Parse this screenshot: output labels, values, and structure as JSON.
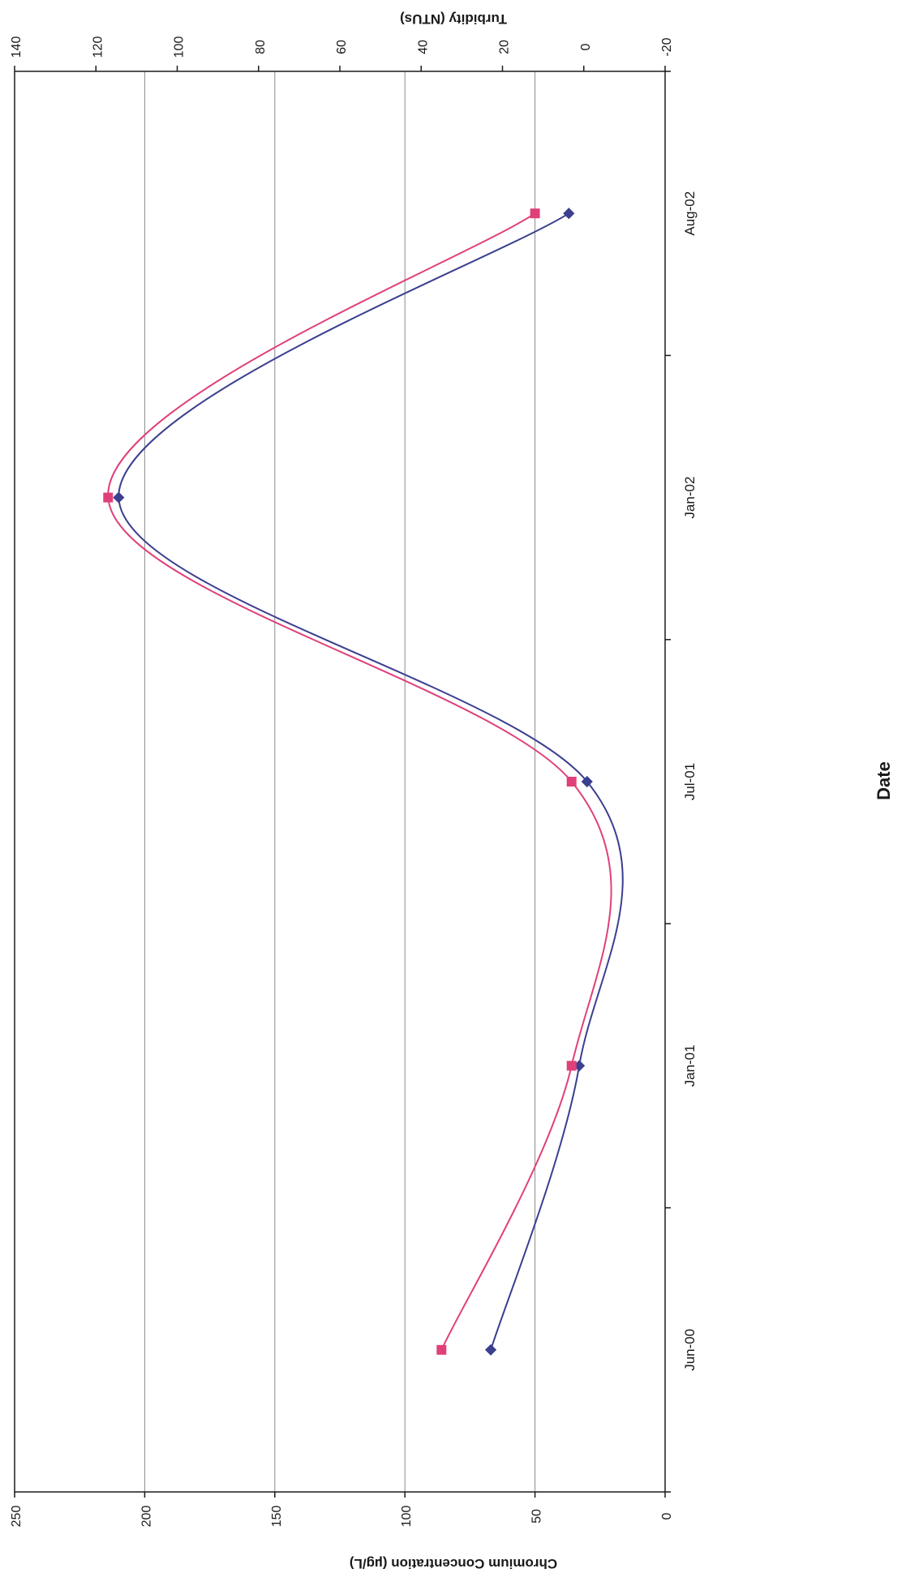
{
  "chart_data": {
    "type": "line",
    "orientation": "rotated-90-clockwise",
    "title": "",
    "xlabel": "Date",
    "ylabel": "Chromium Concentration (µg/L)",
    "y2label": "Turbidity (NTUs)",
    "x_tick_labels": [
      "Jun-00",
      "Jan-01",
      "Jul-01",
      "Jan-02",
      "Aug-02"
    ],
    "x_dates": [
      "Jun-00",
      "Jan-01",
      "Jul-01",
      "Jan-02",
      "Aug-02"
    ],
    "ylim": [
      0,
      250
    ],
    "y_ticks": [
      0,
      50,
      100,
      150,
      200,
      250
    ],
    "y2lim": [
      -20,
      140
    ],
    "y2_ticks": [
      -20,
      0,
      20,
      40,
      60,
      80,
      100,
      120,
      140
    ],
    "grid": true,
    "smoothed": true,
    "series": [
      {
        "axis": "primary",
        "color": "#3b3f8f",
        "marker": "diamond",
        "values": [
          67,
          33,
          30,
          210,
          37
        ]
      },
      {
        "axis": "secondary",
        "color": "#e0407a",
        "marker": "square",
        "values": [
          35,
          3,
          3,
          117,
          12
        ]
      }
    ]
  }
}
